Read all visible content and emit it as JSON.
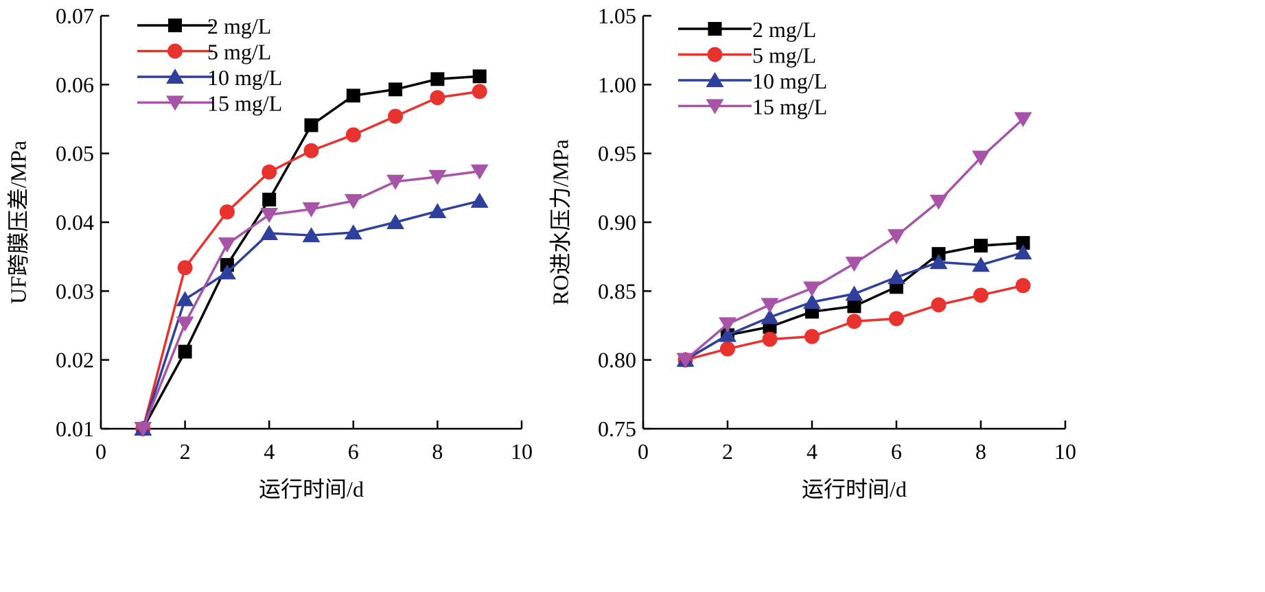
{
  "chart_data": [
    {
      "type": "line",
      "xlabel": "运行时间/d",
      "ylabel": "UF跨膜压差/MPa",
      "xlim": [
        0,
        10
      ],
      "ylim": [
        0.01,
        0.07
      ],
      "xticks": [
        "0",
        "2",
        "4",
        "6",
        "8",
        "10"
      ],
      "yticks": [
        "0.01",
        "0.02",
        "0.03",
        "0.04",
        "0.05",
        "0.06",
        "0.07"
      ],
      "grid": false,
      "legend_position": "top-left",
      "x": [
        1,
        2,
        3,
        4,
        5,
        6,
        7,
        8,
        9
      ],
      "series": [
        {
          "name": "2 mg/L",
          "color": "#000000",
          "marker": "square",
          "values": [
            0.01,
            0.0212,
            0.0338,
            0.0433,
            0.0541,
            0.0584,
            0.0593,
            0.0608,
            0.0612
          ]
        },
        {
          "name": "5 mg/L",
          "color": "#e8322d",
          "marker": "circle",
          "values": [
            0.01,
            0.0334,
            0.0415,
            0.0473,
            0.0504,
            0.0527,
            0.0554,
            0.0581,
            0.059
          ]
        },
        {
          "name": "10 mg/L",
          "color": "#2f3f9c",
          "marker": "triangle-up",
          "values": [
            0.01,
            0.0288,
            0.0327,
            0.0384,
            0.0381,
            0.0385,
            0.04,
            0.0416,
            0.0431
          ]
        },
        {
          "name": "15 mg/L",
          "color": "#a653a8",
          "marker": "triangle-down",
          "values": [
            0.01,
            0.0253,
            0.0368,
            0.0411,
            0.0419,
            0.0431,
            0.0459,
            0.0466,
            0.0474
          ]
        }
      ]
    },
    {
      "type": "line",
      "xlabel": "运行时间/d",
      "ylabel": "RO进水压力/MPa",
      "xlim": [
        0,
        10
      ],
      "ylim": [
        0.75,
        1.05
      ],
      "xticks": [
        "0",
        "2",
        "4",
        "6",
        "8",
        "10"
      ],
      "yticks": [
        "0.75",
        "0.80",
        "0.85",
        "0.90",
        "0.95",
        "1.00",
        "1.05"
      ],
      "grid": false,
      "legend_position": "top-left",
      "x": [
        1,
        2,
        3,
        4,
        5,
        6,
        7,
        8,
        9
      ],
      "series": [
        {
          "name": "2 mg/L",
          "color": "#000000",
          "marker": "square",
          "values": [
            0.8,
            0.818,
            0.824,
            0.835,
            0.839,
            0.853,
            0.877,
            0.883,
            0.885
          ]
        },
        {
          "name": "5 mg/L",
          "color": "#e8322d",
          "marker": "circle",
          "values": [
            0.8,
            0.808,
            0.815,
            0.817,
            0.828,
            0.83,
            0.84,
            0.847,
            0.854
          ]
        },
        {
          "name": "10 mg/L",
          "color": "#2f3f9c",
          "marker": "triangle-up",
          "values": [
            0.8,
            0.818,
            0.831,
            0.842,
            0.848,
            0.86,
            0.871,
            0.869,
            0.878
          ]
        },
        {
          "name": "15 mg/L",
          "color": "#a653a8",
          "marker": "triangle-down",
          "values": [
            0.8,
            0.826,
            0.84,
            0.852,
            0.87,
            0.89,
            0.915,
            0.947,
            0.975
          ]
        }
      ]
    }
  ]
}
